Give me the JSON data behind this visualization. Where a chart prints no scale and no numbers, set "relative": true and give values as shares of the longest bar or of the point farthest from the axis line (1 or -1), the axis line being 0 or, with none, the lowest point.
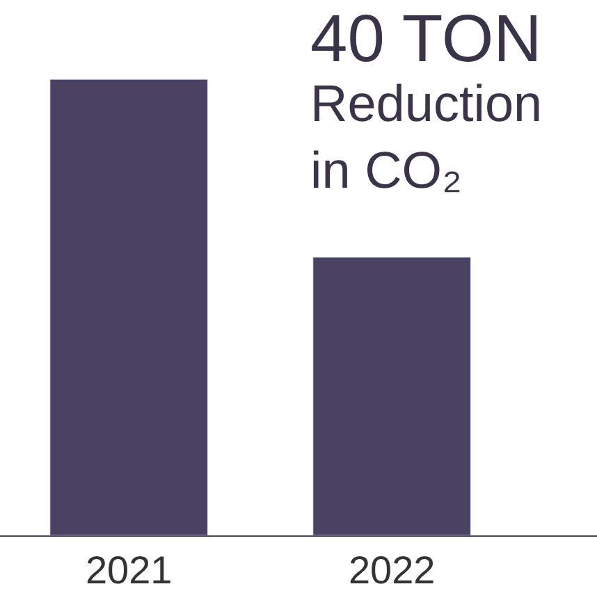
{
  "chart_data": {
    "type": "bar",
    "relative": true,
    "categories": [
      "2021",
      "2022"
    ],
    "values": [
      1,
      0.61
    ],
    "color": "#4b4263",
    "annotations": [
      "40 TON",
      "Reduction in CO₂"
    ]
  }
}
